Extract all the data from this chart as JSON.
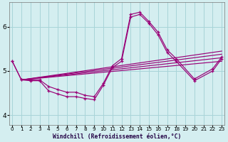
{
  "background_color": "#d4eef0",
  "grid_color": "#a8d4d8",
  "line_color": "#990077",
  "xlabel": "Windchill (Refroidissement éolien,°C)",
  "xlim": [
    -0.3,
    23.3
  ],
  "ylim": [
    3.78,
    6.55
  ],
  "yticks": [
    4,
    5,
    6
  ],
  "xticks": [
    0,
    1,
    2,
    3,
    4,
    5,
    6,
    7,
    8,
    9,
    10,
    11,
    12,
    13,
    14,
    15,
    16,
    17,
    18,
    19,
    20,
    21,
    22,
    23
  ],
  "curve_big_x": [
    0,
    1,
    2,
    3,
    4,
    5,
    6,
    7,
    8,
    9,
    10,
    11,
    12,
    13,
    14,
    15,
    16,
    17,
    18,
    20,
    22,
    23
  ],
  "curve_big_y": [
    5.22,
    4.8,
    4.8,
    4.8,
    4.65,
    4.58,
    4.52,
    4.52,
    4.45,
    4.42,
    4.72,
    5.12,
    5.28,
    6.28,
    6.33,
    6.12,
    5.88,
    5.48,
    5.28,
    4.82,
    5.05,
    5.32
  ],
  "curve_small_x": [
    0,
    1,
    2,
    3,
    4,
    5,
    6,
    7,
    8,
    9,
    10,
    11,
    12,
    13,
    14,
    15,
    16,
    17,
    18,
    20,
    22,
    23
  ],
  "curve_small_y": [
    5.22,
    4.8,
    4.78,
    4.78,
    4.55,
    4.48,
    4.42,
    4.42,
    4.38,
    4.35,
    4.68,
    5.08,
    5.22,
    6.22,
    6.28,
    6.08,
    5.82,
    5.42,
    5.22,
    4.78,
    5.0,
    5.28
  ],
  "trend_lines": [
    {
      "x": [
        1,
        23
      ],
      "y": [
        4.8,
        5.45
      ]
    },
    {
      "x": [
        1,
        23
      ],
      "y": [
        4.8,
        5.38
      ]
    },
    {
      "x": [
        1,
        23
      ],
      "y": [
        4.8,
        5.3
      ]
    },
    {
      "x": [
        1,
        23
      ],
      "y": [
        4.8,
        5.22
      ]
    }
  ]
}
